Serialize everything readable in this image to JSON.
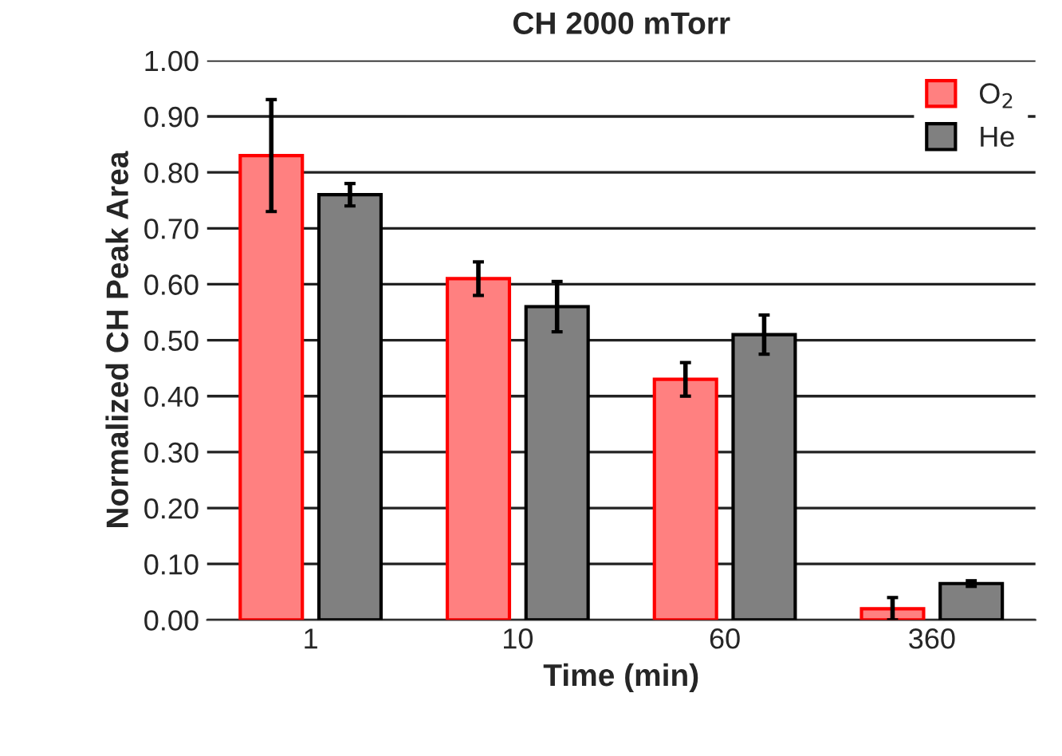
{
  "chart_data": {
    "type": "bar",
    "title": "CH 2000 mTorr",
    "xlabel": "Time (min)",
    "ylabel": "Normalized CH Peak Area",
    "categories": [
      "1",
      "10",
      "60",
      "360"
    ],
    "series": [
      {
        "name": "O$_{2}$",
        "color": "#ff8080",
        "values": [
          0.83,
          0.61,
          0.43,
          0.02
        ],
        "errors": [
          0.1,
          0.03,
          0.03,
          0.02
        ]
      },
      {
        "name": "He",
        "color": "#808080",
        "values": [
          0.76,
          0.56,
          0.51,
          0.065
        ],
        "errors": [
          0.02,
          0.045,
          0.035,
          0.005
        ]
      }
    ],
    "ylim": [
      0,
      1.0
    ],
    "yticks": [
      {
        "value": 0,
        "label": "0.00"
      },
      {
        "value": 0.1,
        "label": "0.10"
      },
      {
        "value": 0.2,
        "label": "0.20"
      },
      {
        "value": 0.3,
        "label": "0.30"
      },
      {
        "value": 0.4,
        "label": "0.40"
      },
      {
        "value": 0.5,
        "label": "0.50"
      },
      {
        "value": 0.6,
        "label": "0.60"
      },
      {
        "value": 0.7,
        "label": "0.70"
      },
      {
        "value": 0.8,
        "label": "0.80"
      },
      {
        "value": 0.9,
        "label": "0.90"
      },
      {
        "value": 1.0,
        "label": "1.00"
      }
    ],
    "grid": "y",
    "legend": "top right"
  }
}
